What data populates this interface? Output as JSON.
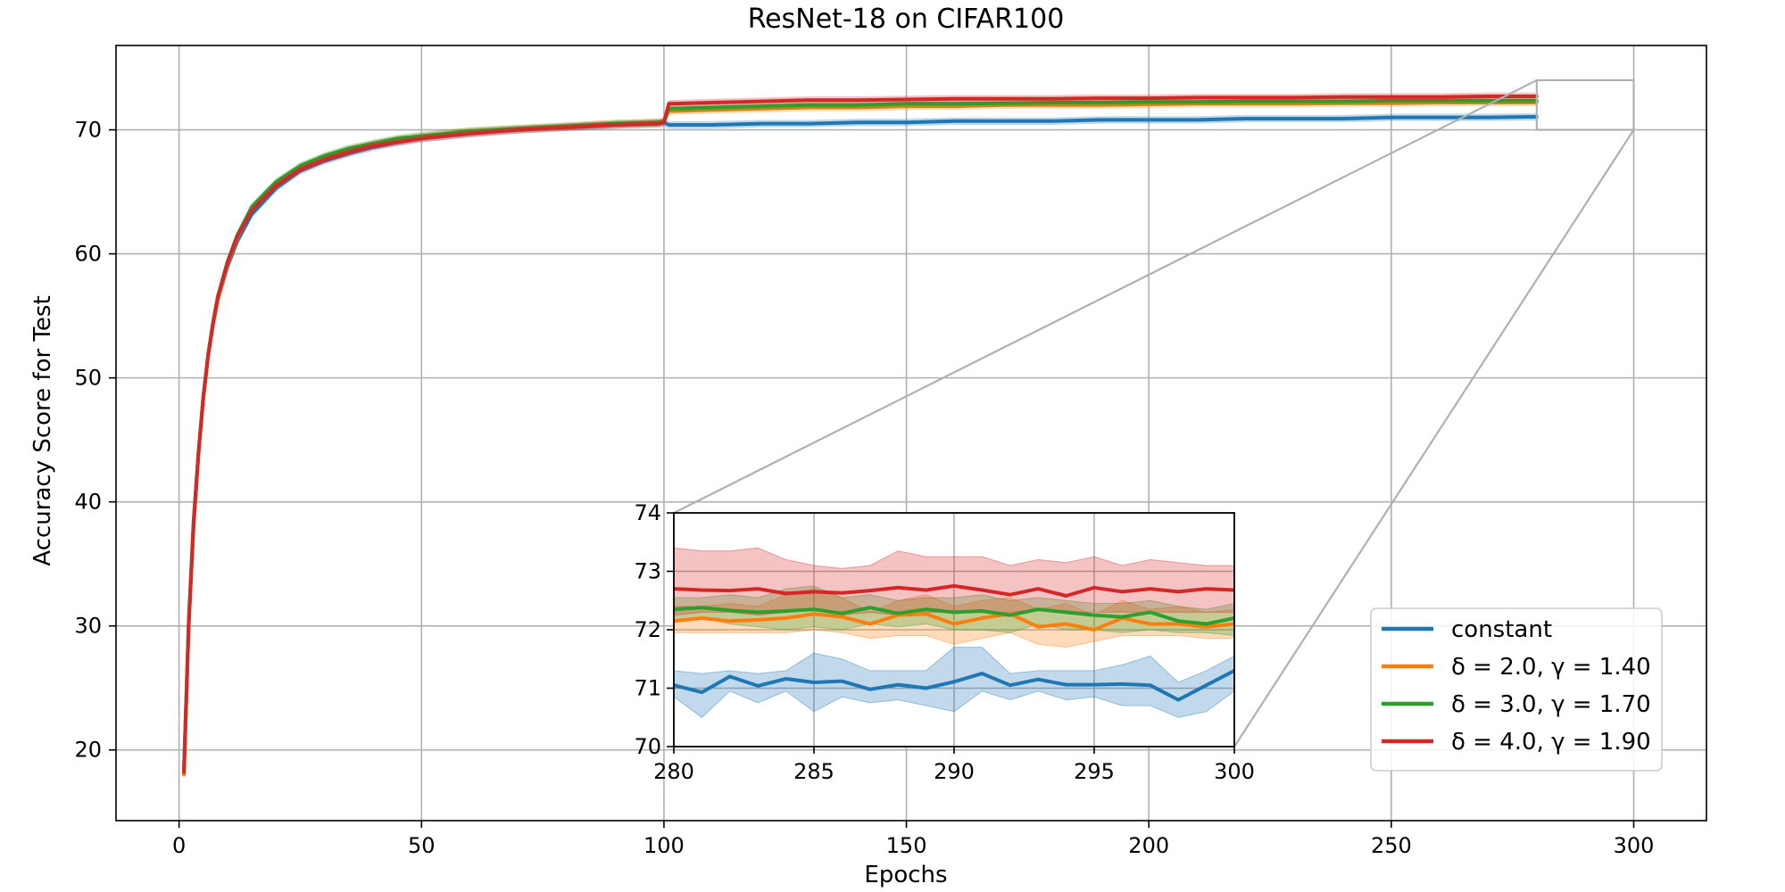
{
  "chart_data": {
    "type": "line",
    "title": "ResNet-18 on CIFAR100",
    "xlabel": "Epochs",
    "ylabel": "Accuracy Score for Test",
    "xlim": [
      -13,
      315
    ],
    "ylim": [
      14.3,
      76.8
    ],
    "xticks": [
      0,
      50,
      100,
      150,
      200,
      250,
      300
    ],
    "yticks": [
      20,
      30,
      40,
      50,
      60,
      70
    ],
    "grid": true,
    "legend_position": "lower-right",
    "series": [
      {
        "name": "constant",
        "color": "#1f77b4",
        "band": 0.3,
        "x": [
          1,
          2,
          3,
          4,
          5,
          6,
          7,
          8,
          10,
          12,
          15,
          20,
          25,
          30,
          35,
          40,
          45,
          50,
          55,
          60,
          70,
          80,
          90,
          99,
          100,
          101,
          110,
          120,
          130,
          140,
          150,
          160,
          170,
          180,
          190,
          200,
          210,
          220,
          230,
          240,
          250,
          260,
          270,
          280
        ],
        "values": [
          18.5,
          30.5,
          38.5,
          44.0,
          48.5,
          51.8,
          54.3,
          56.3,
          59.0,
          61.0,
          63.2,
          65.3,
          66.7,
          67.5,
          68.1,
          68.6,
          69.0,
          69.3,
          69.5,
          69.7,
          70.0,
          70.2,
          70.4,
          70.5,
          70.6,
          70.4,
          70.4,
          70.5,
          70.5,
          70.6,
          70.6,
          70.7,
          70.7,
          70.7,
          70.8,
          70.8,
          70.8,
          70.9,
          70.9,
          70.9,
          71.0,
          71.0,
          71.0,
          71.05
        ]
      },
      {
        "name": "δ = 2.0, γ = 1.40",
        "color": "#ff7f0e",
        "band": 0.3,
        "x": [
          1,
          2,
          3,
          4,
          5,
          6,
          7,
          8,
          10,
          12,
          15,
          20,
          25,
          30,
          35,
          40,
          45,
          50,
          55,
          60,
          70,
          80,
          90,
          99,
          100,
          101,
          110,
          120,
          130,
          140,
          150,
          160,
          170,
          180,
          190,
          200,
          210,
          220,
          230,
          240,
          250,
          260,
          270,
          280
        ],
        "values": [
          18.0,
          30.0,
          38.0,
          43.8,
          48.3,
          51.7,
          54.3,
          56.3,
          59.2,
          61.3,
          63.6,
          65.7,
          67.0,
          67.8,
          68.4,
          68.9,
          69.2,
          69.5,
          69.7,
          69.9,
          70.1,
          70.3,
          70.5,
          70.6,
          70.7,
          71.5,
          71.6,
          71.7,
          71.8,
          71.8,
          71.9,
          71.9,
          72.0,
          72.0,
          72.0,
          72.05,
          72.1,
          72.1,
          72.1,
          72.15,
          72.15,
          72.2,
          72.2,
          72.2
        ]
      },
      {
        "name": "δ = 3.0, γ = 1.70",
        "color": "#2ca02c",
        "band": 0.3,
        "x": [
          1,
          2,
          3,
          4,
          5,
          6,
          7,
          8,
          10,
          12,
          15,
          20,
          25,
          30,
          35,
          40,
          45,
          50,
          55,
          60,
          70,
          80,
          90,
          99,
          100,
          101,
          110,
          120,
          130,
          140,
          150,
          160,
          170,
          180,
          190,
          200,
          210,
          220,
          230,
          240,
          250,
          260,
          270,
          280
        ],
        "values": [
          18.3,
          30.3,
          38.3,
          44.0,
          48.5,
          51.9,
          54.5,
          56.6,
          59.4,
          61.5,
          63.8,
          65.8,
          67.1,
          67.9,
          68.5,
          68.9,
          69.3,
          69.5,
          69.7,
          69.9,
          70.1,
          70.3,
          70.5,
          70.6,
          70.7,
          71.7,
          71.8,
          71.9,
          72.0,
          72.0,
          72.1,
          72.1,
          72.15,
          72.2,
          72.2,
          72.25,
          72.25,
          72.3,
          72.3,
          72.3,
          72.35,
          72.35,
          72.35,
          72.35
        ]
      },
      {
        "name": "δ = 4.0, γ = 1.90",
        "color": "#d62728",
        "band": 0.3,
        "x": [
          1,
          2,
          3,
          4,
          5,
          6,
          7,
          8,
          10,
          12,
          15,
          20,
          25,
          30,
          35,
          40,
          45,
          50,
          55,
          60,
          70,
          80,
          90,
          99,
          100,
          101,
          110,
          120,
          130,
          140,
          150,
          160,
          170,
          180,
          190,
          200,
          210,
          220,
          230,
          240,
          250,
          260,
          270,
          280
        ],
        "values": [
          18.2,
          30.2,
          38.2,
          43.9,
          48.4,
          51.8,
          54.4,
          56.5,
          59.3,
          61.4,
          63.5,
          65.5,
          66.8,
          67.6,
          68.2,
          68.7,
          69.0,
          69.3,
          69.5,
          69.7,
          70.0,
          70.2,
          70.4,
          70.5,
          70.6,
          72.1,
          72.2,
          72.3,
          72.4,
          72.4,
          72.45,
          72.5,
          72.5,
          72.5,
          72.55,
          72.55,
          72.6,
          72.6,
          72.6,
          72.65,
          72.65,
          72.65,
          72.7,
          72.7
        ]
      }
    ],
    "inset": {
      "xlim": [
        280,
        300
      ],
      "ylim": [
        70,
        74
      ],
      "xticks": [
        280,
        285,
        290,
        295,
        300
      ],
      "yticks": [
        70,
        71,
        72,
        73,
        74
      ],
      "grid": true,
      "series": [
        {
          "name": "constant",
          "color": "#1f77b4",
          "x": [
            280,
            281,
            282,
            283,
            284,
            285,
            286,
            287,
            288,
            289,
            290,
            291,
            292,
            293,
            294,
            295,
            296,
            297,
            298,
            299,
            300
          ],
          "values": [
            71.05,
            70.93,
            71.2,
            71.04,
            71.16,
            71.1,
            71.12,
            70.98,
            71.06,
            71.0,
            71.11,
            71.25,
            71.05,
            71.15,
            71.06,
            71.06,
            71.07,
            71.05,
            70.8,
            71.05,
            71.3
          ],
          "lower": [
            70.85,
            70.5,
            70.95,
            70.75,
            70.95,
            70.6,
            70.85,
            70.75,
            70.8,
            70.7,
            70.6,
            70.95,
            70.8,
            70.95,
            70.8,
            70.85,
            70.7,
            70.7,
            70.5,
            70.6,
            70.95
          ],
          "upper": [
            71.3,
            71.25,
            71.3,
            71.25,
            71.3,
            71.6,
            71.5,
            71.3,
            71.3,
            71.3,
            71.7,
            71.7,
            71.25,
            71.3,
            71.3,
            71.3,
            71.4,
            71.55,
            71.1,
            71.3,
            71.55
          ]
        },
        {
          "name": "δ = 2.0, γ = 1.40",
          "color": "#ff7f0e",
          "x": [
            280,
            281,
            282,
            283,
            284,
            285,
            286,
            287,
            288,
            289,
            290,
            291,
            292,
            293,
            294,
            295,
            296,
            297,
            298,
            299,
            300
          ],
          "values": [
            72.15,
            72.2,
            72.15,
            72.17,
            72.2,
            72.27,
            72.22,
            72.1,
            72.25,
            72.27,
            72.1,
            72.2,
            72.27,
            72.05,
            72.1,
            72.0,
            72.2,
            72.1,
            72.1,
            72.05,
            72.1
          ],
          "lower": [
            71.95,
            71.95,
            71.95,
            71.95,
            71.95,
            72.0,
            71.95,
            71.85,
            71.9,
            71.9,
            71.75,
            71.85,
            71.95,
            71.75,
            71.7,
            71.8,
            71.9,
            71.9,
            71.9,
            71.85,
            71.85
          ],
          "upper": [
            72.4,
            72.4,
            72.45,
            72.4,
            72.6,
            72.7,
            72.55,
            72.3,
            72.5,
            72.6,
            72.4,
            72.5,
            72.55,
            72.35,
            72.45,
            72.25,
            72.5,
            72.35,
            72.4,
            72.3,
            72.35
          ]
        },
        {
          "name": "δ = 3.0, γ = 1.70",
          "color": "#2ca02c",
          "x": [
            280,
            281,
            282,
            283,
            284,
            285,
            286,
            287,
            288,
            289,
            290,
            291,
            292,
            293,
            294,
            295,
            296,
            297,
            298,
            299,
            300
          ],
          "values": [
            72.35,
            72.38,
            72.33,
            72.3,
            72.32,
            72.35,
            72.28,
            72.38,
            72.28,
            72.35,
            72.3,
            72.32,
            72.25,
            72.35,
            72.3,
            72.25,
            72.22,
            72.3,
            72.15,
            72.1,
            72.2
          ],
          "lower": [
            72.15,
            72.2,
            72.1,
            72.05,
            72.0,
            72.05,
            72.0,
            72.1,
            72.05,
            72.1,
            72.0,
            72.0,
            71.95,
            72.1,
            72.0,
            72.0,
            71.95,
            72.0,
            71.95,
            71.95,
            71.9
          ],
          "upper": [
            72.55,
            72.55,
            72.6,
            72.55,
            72.7,
            72.75,
            72.55,
            72.6,
            72.5,
            72.55,
            72.55,
            72.6,
            72.5,
            72.55,
            72.5,
            72.45,
            72.45,
            72.5,
            72.4,
            72.35,
            72.45
          ]
        },
        {
          "name": "δ = 4.0, γ = 1.90",
          "color": "#d62728",
          "x": [
            280,
            281,
            282,
            283,
            284,
            285,
            286,
            287,
            288,
            289,
            290,
            291,
            292,
            293,
            294,
            295,
            296,
            297,
            298,
            299,
            300
          ],
          "values": [
            72.7,
            72.68,
            72.67,
            72.7,
            72.62,
            72.65,
            72.63,
            72.67,
            72.72,
            72.68,
            72.75,
            72.68,
            72.6,
            72.7,
            72.58,
            72.72,
            72.65,
            72.7,
            72.65,
            72.7,
            72.68
          ],
          "lower": [
            72.25,
            72.3,
            72.3,
            72.25,
            72.3,
            72.35,
            72.25,
            72.3,
            72.25,
            72.3,
            72.3,
            72.3,
            72.3,
            72.35,
            72.3,
            72.3,
            72.3,
            72.3,
            72.3,
            72.3,
            72.3
          ],
          "upper": [
            73.4,
            73.35,
            73.35,
            73.4,
            73.2,
            73.1,
            73.05,
            73.1,
            73.35,
            73.25,
            73.25,
            73.25,
            73.1,
            73.2,
            73.15,
            73.25,
            73.1,
            73.2,
            73.15,
            73.1,
            73.1
          ]
        }
      ]
    }
  }
}
